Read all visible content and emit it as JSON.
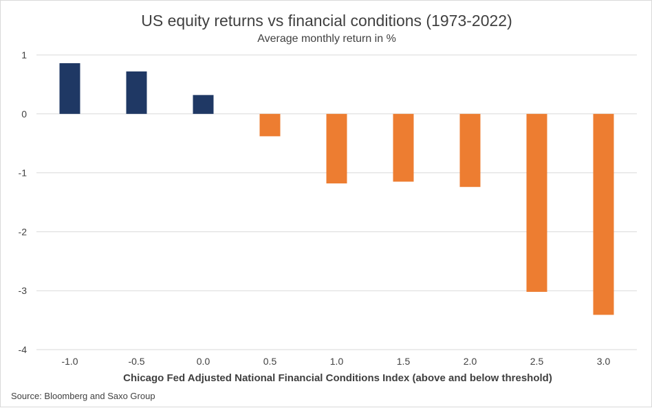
{
  "chart_data": {
    "type": "bar",
    "title": "US equity returns vs financial conditions (1973-2022)",
    "subtitle": "Average monthly return in %",
    "xlabel": "Chicago Fed Adjusted National Financial Conditions Index (above and below threshold)",
    "ylabel": "",
    "categories": [
      "-1.0",
      "-0.5",
      "0.0",
      "0.5",
      "1.0",
      "1.5",
      "2.0",
      "2.5",
      "3.0"
    ],
    "values": [
      0.86,
      0.72,
      0.32,
      -0.38,
      -1.18,
      -1.15,
      -1.24,
      -3.02,
      -3.41
    ],
    "ylim": [
      -4,
      1
    ],
    "yticks": [
      1,
      0,
      -1,
      -2,
      -3,
      -4
    ],
    "grid": true,
    "colors": {
      "positive": "#1f3864",
      "negative": "#ed7d31",
      "grid": "#d9d9d9",
      "text": "#404040"
    }
  },
  "source": "Source: Bloomberg and Saxo Group"
}
